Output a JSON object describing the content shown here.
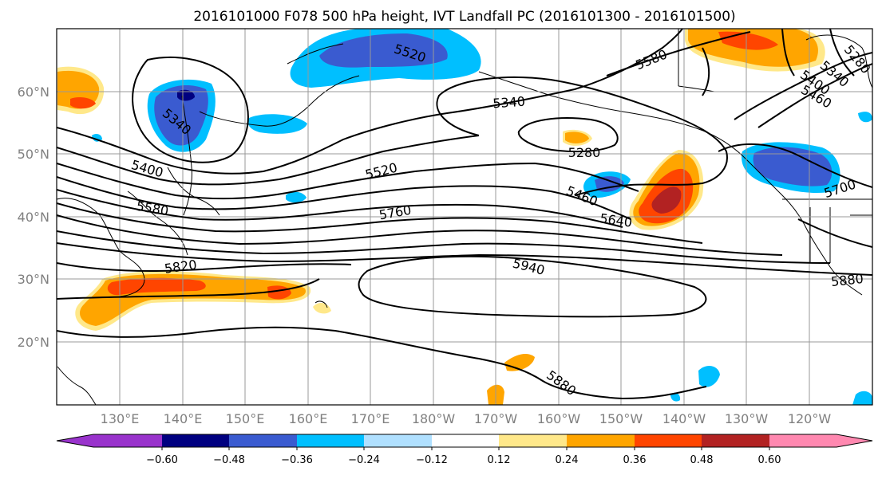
{
  "title": "2016101000 F078 500 hPa height, IVT Landfall PC (2016101300 - 2016101500)",
  "lat_labels": [
    "60°N",
    "50°N",
    "40°N",
    "30°N",
    "20°N"
  ],
  "lon_labels": [
    "130°E",
    "140°E",
    "150°E",
    "160°E",
    "170°E",
    "180°W",
    "170°W",
    "160°W",
    "150°W",
    "140°W",
    "130°W",
    "120°W"
  ],
  "contour_labels": [
    "5520",
    "5580",
    "5340",
    "5280",
    "5340",
    "5280",
    "5400",
    "5460",
    "5340",
    "5400",
    "5520",
    "5460",
    "5580",
    "5640",
    "5760",
    "5700",
    "5820",
    "5940",
    "5880",
    "5880"
  ],
  "colorbar": {
    "colors": [
      "#9933cc",
      "#000080",
      "#3a5bd0",
      "#00bfff",
      "#b0e0ff",
      "#ffffff",
      "#ffe88a",
      "#ffa500",
      "#ff4500",
      "#b22222",
      "#ff88b0"
    ],
    "tick_labels": [
      "−0.60",
      "−0.48",
      "−0.36",
      "−0.24",
      "−0.12",
      "0.12",
      "0.24",
      "0.36",
      "0.48",
      "0.60"
    ]
  },
  "colors": {
    "positive_core": "#ff4500",
    "positive_mid": "#ffa500",
    "positive_edge": "#ffe88a",
    "negative_core": "#000080",
    "negative_mid": "#3a5bd0",
    "negative_edge": "#00bfff"
  }
}
